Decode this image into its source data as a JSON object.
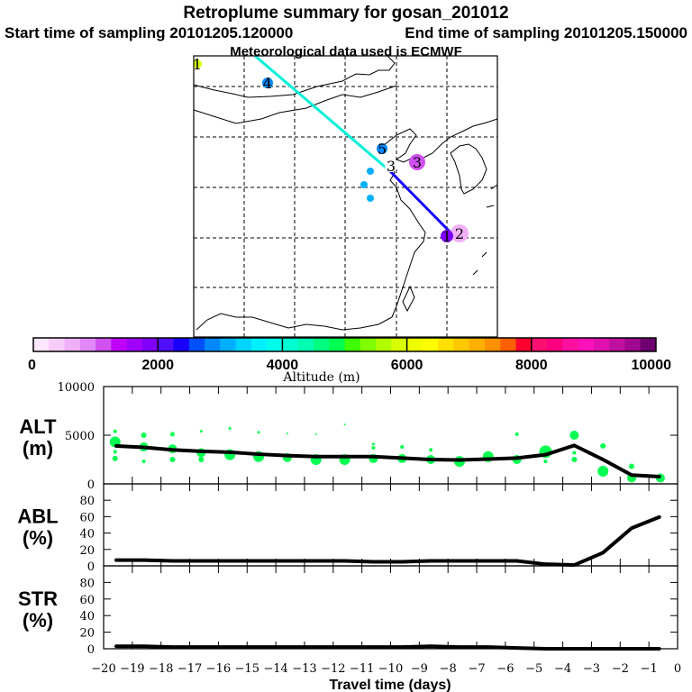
{
  "header": {
    "title": "Retroplume summary for gosan_201012",
    "start_time": "Start time of sampling 20101205.120000",
    "end_time": "End time of sampling 20101205.150000",
    "met_data": "Meteorological data used is ECMWF"
  },
  "map": {
    "markers": [
      {
        "label": "1",
        "color": "#d8ff00"
      },
      {
        "label": "4",
        "color": "#0088ff"
      },
      {
        "label": "5",
        "color": "#0088ff"
      },
      {
        "label": "3",
        "color": "#ffffff"
      },
      {
        "label": "3",
        "color": "#d050f0"
      },
      {
        "label": "2",
        "color": "#f0b0f8"
      },
      {
        "label": "1",
        "color": "#8000ff"
      }
    ],
    "trajectory_colors": [
      "#00f0d8",
      "#1a00ff"
    ]
  },
  "colorbar": {
    "label": "Altitude (m)",
    "ticks": [
      "0",
      "2000",
      "4000",
      "6000",
      "8000",
      "10000"
    ],
    "range": [
      0,
      10000
    ],
    "colors": [
      "#ffe6ff",
      "#f8ccf8",
      "#f0b0f8",
      "#e088f8",
      "#d050f0",
      "#c000ff",
      "#a000ff",
      "#8000ff",
      "#5010ff",
      "#1a00ff",
      "#0050ff",
      "#0088ff",
      "#00b0ff",
      "#00d4ff",
      "#00f0ff",
      "#00ffe8",
      "#00ffd0",
      "#00ffb0",
      "#00ff80",
      "#00ff50",
      "#40ff00",
      "#80ff00",
      "#b0ff00",
      "#d8ff00",
      "#f0ff00",
      "#ffff00",
      "#ffe000",
      "#ffc800",
      "#ffb000",
      "#ff9000",
      "#ff6000",
      "#ff0030",
      "#ff1070",
      "#ff0080",
      "#ff10a0",
      "#ff10b8",
      "#e010b0",
      "#c010a0",
      "#a00890",
      "#700070"
    ]
  },
  "chart_data": [
    {
      "type": "line",
      "name": "ALT",
      "ylabel": "ALT",
      "yunit": "(m)",
      "ylim": [
        0,
        10000
      ],
      "yticks": [
        "0",
        "5000",
        "10000"
      ],
      "x": [
        -19.6,
        -18.6,
        -17.6,
        -16.6,
        -15.6,
        -14.6,
        -13.6,
        -12.6,
        -11.6,
        -10.6,
        -9.6,
        -8.6,
        -7.6,
        -6.6,
        -5.6,
        -4.6,
        -3.6,
        -2.6,
        -1.6,
        -0.6
      ],
      "values": [
        3900,
        3750,
        3500,
        3350,
        3250,
        3050,
        2900,
        2800,
        2800,
        2800,
        2650,
        2500,
        2450,
        2550,
        2650,
        3000,
        3950,
        2500,
        900,
        740
      ],
      "bubbles_color": "#00ff50",
      "bubbles": [
        [
          -19.6,
          4300,
          6
        ],
        [
          -19.6,
          5400,
          2
        ],
        [
          -19.6,
          3300,
          2
        ],
        [
          -19.6,
          2600,
          3
        ],
        [
          -18.6,
          3800,
          5
        ],
        [
          -18.6,
          5000,
          3
        ],
        [
          -18.6,
          2300,
          2
        ],
        [
          -17.6,
          3600,
          5
        ],
        [
          -17.6,
          5100,
          2.5
        ],
        [
          -17.6,
          2500,
          3
        ],
        [
          -16.6,
          3200,
          5
        ],
        [
          -16.6,
          5400,
          1.5
        ],
        [
          -16.6,
          2500,
          3
        ],
        [
          -15.6,
          3000,
          6
        ],
        [
          -15.6,
          5700,
          1.5
        ],
        [
          -14.6,
          2800,
          6
        ],
        [
          -14.6,
          5300,
          1.5
        ],
        [
          -13.6,
          2700,
          5
        ],
        [
          -13.6,
          5200,
          1
        ],
        [
          -12.6,
          2500,
          6
        ],
        [
          -12.6,
          5100,
          1
        ],
        [
          -11.6,
          2500,
          6
        ],
        [
          -11.6,
          6100,
          1
        ],
        [
          -10.6,
          2600,
          5
        ],
        [
          -10.6,
          3700,
          2
        ],
        [
          -10.6,
          4100,
          1.5
        ],
        [
          -9.6,
          2600,
          5
        ],
        [
          -9.6,
          3800,
          2
        ],
        [
          -8.6,
          2500,
          5
        ],
        [
          -8.6,
          3500,
          2
        ],
        [
          -7.6,
          2300,
          6
        ],
        [
          -6.6,
          2800,
          6
        ],
        [
          -5.6,
          2500,
          5
        ],
        [
          -5.6,
          5100,
          2
        ],
        [
          -4.6,
          3300,
          7
        ],
        [
          -4.6,
          2300,
          2
        ],
        [
          -3.6,
          5000,
          5
        ],
        [
          -3.6,
          2500,
          3
        ],
        [
          -3.6,
          3200,
          2
        ],
        [
          -2.6,
          1300,
          6
        ],
        [
          -2.6,
          3900,
          3
        ],
        [
          -1.6,
          600,
          5
        ],
        [
          -1.6,
          1800,
          3
        ],
        [
          -0.6,
          600,
          5
        ]
      ]
    },
    {
      "type": "line",
      "name": "ABL",
      "ylabel": "ABL",
      "yunit": "(%)",
      "ylim": [
        0,
        100
      ],
      "yticks": [
        "0",
        "20",
        "40",
        "60",
        "80"
      ],
      "x": [
        -19.6,
        -18.6,
        -17.6,
        -16.6,
        -15.6,
        -14.6,
        -13.6,
        -12.6,
        -11.6,
        -10.6,
        -9.6,
        -8.6,
        -7.6,
        -6.6,
        -5.6,
        -4.6,
        -3.6,
        -2.6,
        -1.6,
        -0.6
      ],
      "values": [
        7,
        7,
        6,
        6,
        6,
        6,
        6,
        6,
        6,
        5,
        5,
        6,
        6,
        6,
        6,
        2,
        1,
        16,
        46,
        60
      ]
    },
    {
      "type": "line",
      "name": "STR",
      "ylabel": "STR",
      "yunit": "(%)",
      "ylim": [
        0,
        100
      ],
      "yticks": [
        "0",
        "20",
        "40",
        "60",
        "80"
      ],
      "x": [
        -19.6,
        -18.6,
        -17.6,
        -16.6,
        -15.6,
        -14.6,
        -13.6,
        -12.6,
        -11.6,
        -10.6,
        -9.6,
        -8.6,
        -7.6,
        -6.6,
        -5.6,
        -4.6,
        -3.6,
        -2.6,
        -1.6,
        -0.6
      ],
      "values": [
        3,
        3,
        2,
        2,
        2,
        2,
        2,
        2,
        2,
        2,
        2,
        3,
        2,
        2,
        1,
        0,
        0,
        0,
        0,
        0
      ]
    }
  ],
  "xaxis": {
    "label": "Travel time (days)",
    "ticks": [
      "−20",
      "−19",
      "−18",
      "−17",
      "−16",
      "−15",
      "−14",
      "−13",
      "−12",
      "−11",
      "−10",
      "−9",
      "−8",
      "−7",
      "−6",
      "−5",
      "−4",
      "−3",
      "−2",
      "−1",
      "0"
    ],
    "range": [
      -20,
      0
    ]
  }
}
